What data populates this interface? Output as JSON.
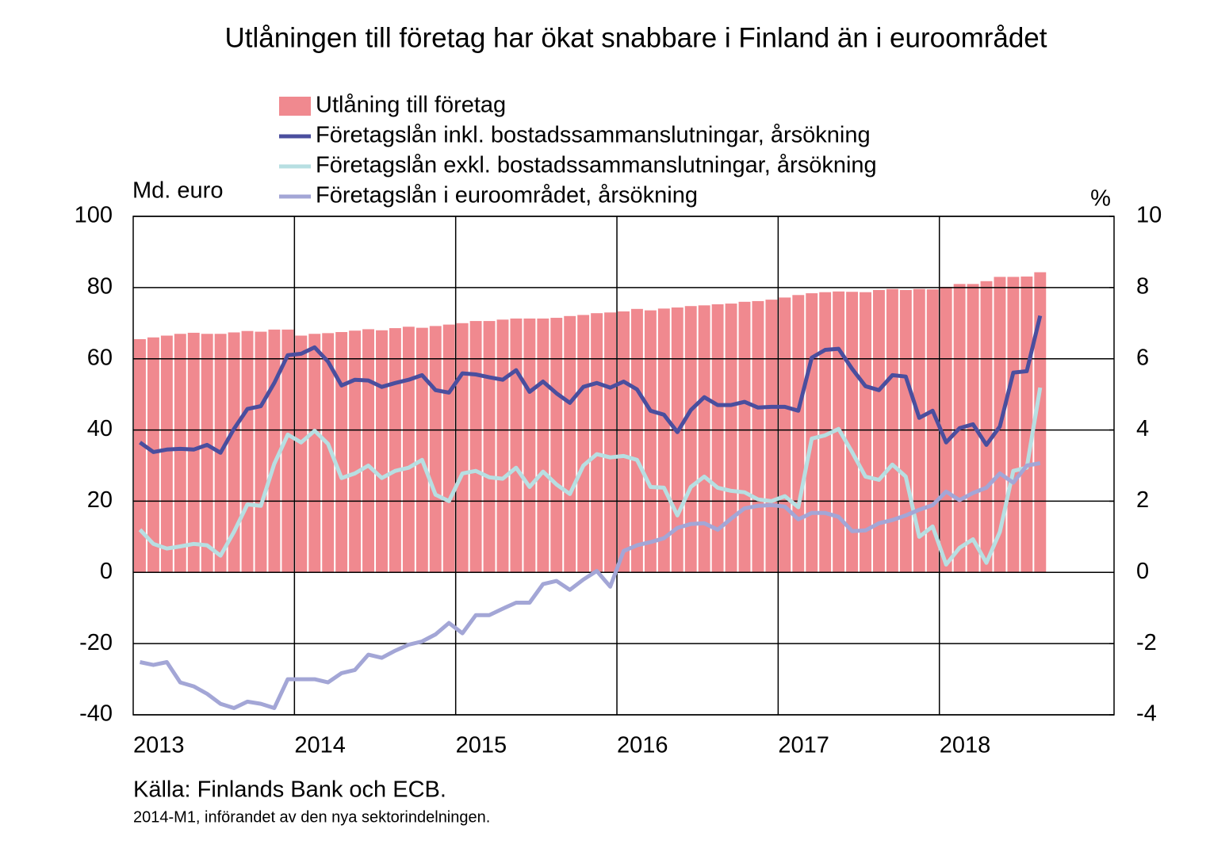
{
  "chart_data": {
    "type": "bar",
    "title": "Utlåningen till företag har ökat snabbare i Finland än i euroområdet",
    "y_label": "Md. euro",
    "y2_label": "%",
    "source": "Källa: Finlands Bank och ECB.",
    "note": "2014-M1, införandet av den nya sektorindelningen.",
    "categories": [
      "2013",
      null,
      null,
      null,
      null,
      null,
      null,
      null,
      null,
      null,
      null,
      null,
      "2014",
      null,
      null,
      null,
      null,
      null,
      null,
      null,
      null,
      null,
      null,
      null,
      "2015",
      null,
      null,
      null,
      null,
      null,
      null,
      null,
      null,
      null,
      null,
      null,
      "2016",
      null,
      null,
      null,
      null,
      null,
      null,
      null,
      null,
      null,
      null,
      null,
      "2017",
      null,
      null,
      null,
      null,
      null,
      null,
      null,
      null,
      null,
      null,
      null,
      "2018",
      null,
      null,
      null,
      null,
      null,
      null,
      null
    ],
    "ylim": [
      -40,
      100
    ],
    "yticks": [
      -40,
      -20,
      0,
      20,
      40,
      60,
      80,
      100
    ],
    "y2lim": [
      -4,
      10
    ],
    "y2ticks": [
      -4,
      -2,
      0,
      2,
      4,
      6,
      8,
      10
    ],
    "grid": true,
    "series": [
      {
        "name": "Utlåning till företag",
        "type": "bar",
        "axis": "y",
        "color": "#f0898f",
        "values": [
          65.5,
          66,
          66.5,
          67,
          67.3,
          67,
          67,
          67.4,
          67.8,
          67.6,
          68.2,
          68.2,
          66.5,
          67,
          67.2,
          67.5,
          67.9,
          68.3,
          68,
          68.6,
          69,
          68.7,
          69.2,
          69.6,
          70,
          70.6,
          70.6,
          71,
          71.3,
          71.3,
          71.3,
          71.5,
          72,
          72.3,
          72.8,
          73,
          73.3,
          74,
          73.6,
          74.1,
          74.4,
          74.8,
          75,
          75.3,
          75.5,
          76,
          76.2,
          76.6,
          77.2,
          77.9,
          78.4,
          78.7,
          78.9,
          78.8,
          78.7,
          79.3,
          79.6,
          79.3,
          79.6,
          79.5,
          80.2,
          81,
          81,
          81.8,
          83,
          83,
          83.1,
          84.3
        ]
      },
      {
        "name": "Företagslån inkl. bostadssammanslutningar, årsökning",
        "type": "line",
        "axis": "y2",
        "color": "#4a4e9e",
        "values": [
          3.65,
          3.38,
          3.45,
          3.47,
          3.45,
          3.58,
          3.36,
          4.03,
          4.59,
          4.67,
          5.32,
          6.1,
          6.14,
          6.32,
          5.92,
          5.25,
          5.41,
          5.39,
          5.21,
          5.32,
          5.41,
          5.54,
          5.12,
          5.05,
          5.59,
          5.56,
          5.48,
          5.41,
          5.68,
          5.07,
          5.36,
          5.03,
          4.76,
          5.21,
          5.32,
          5.19,
          5.36,
          5.14,
          4.54,
          4.43,
          3.94,
          4.56,
          4.92,
          4.7,
          4.7,
          4.79,
          4.63,
          4.65,
          4.65,
          4.54,
          6.03,
          6.25,
          6.28,
          5.72,
          5.23,
          5.12,
          5.54,
          5.5,
          4.34,
          4.54,
          3.65,
          4.05,
          4.16,
          3.58,
          4.1,
          5.61,
          5.65,
          7.21
        ]
      },
      {
        "name": "Företagslån exkl. bostadssammanslutningar, årsökning",
        "type": "line",
        "axis": "y2",
        "color": "#b7dfe2",
        "values": [
          1.2,
          0.8,
          0.67,
          0.73,
          0.8,
          0.76,
          0.47,
          1.14,
          1.91,
          1.87,
          3.05,
          3.87,
          3.65,
          3.98,
          3.61,
          2.65,
          2.78,
          3.0,
          2.65,
          2.85,
          2.94,
          3.16,
          2.18,
          2.0,
          2.78,
          2.85,
          2.67,
          2.63,
          2.94,
          2.4,
          2.83,
          2.47,
          2.2,
          3.0,
          3.32,
          3.23,
          3.27,
          3.16,
          2.4,
          2.38,
          1.6,
          2.4,
          2.69,
          2.38,
          2.29,
          2.25,
          2.05,
          2.0,
          2.14,
          1.83,
          3.76,
          3.85,
          4.03,
          3.38,
          2.69,
          2.6,
          3.03,
          2.69,
          1.0,
          1.29,
          0.22,
          0.69,
          0.93,
          0.27,
          1.14,
          2.85,
          2.94,
          5.19
        ]
      },
      {
        "name": "Företagslån i euroområdet, årsökning",
        "type": "line",
        "axis": "y2",
        "color": "#a3a6d6",
        "values": [
          -2.52,
          -2.6,
          -2.52,
          -3.09,
          -3.2,
          -3.41,
          -3.69,
          -3.81,
          -3.63,
          -3.69,
          -3.81,
          -3.0,
          -3.0,
          -3.0,
          -3.09,
          -2.83,
          -2.74,
          -2.31,
          -2.4,
          -2.2,
          -2.03,
          -1.94,
          -1.74,
          -1.42,
          -1.71,
          -1.2,
          -1.2,
          -1.02,
          -0.85,
          -0.85,
          -0.33,
          -0.24,
          -0.49,
          -0.2,
          0.04,
          -0.4,
          0.6,
          0.76,
          0.85,
          0.96,
          1.25,
          1.36,
          1.38,
          1.2,
          1.51,
          1.8,
          1.87,
          1.89,
          1.85,
          1.49,
          1.67,
          1.67,
          1.56,
          1.16,
          1.18,
          1.38,
          1.47,
          1.6,
          1.76,
          1.89,
          2.27,
          2.03,
          2.23,
          2.38,
          2.78,
          2.52,
          3.0,
          3.07
        ]
      }
    ]
  }
}
